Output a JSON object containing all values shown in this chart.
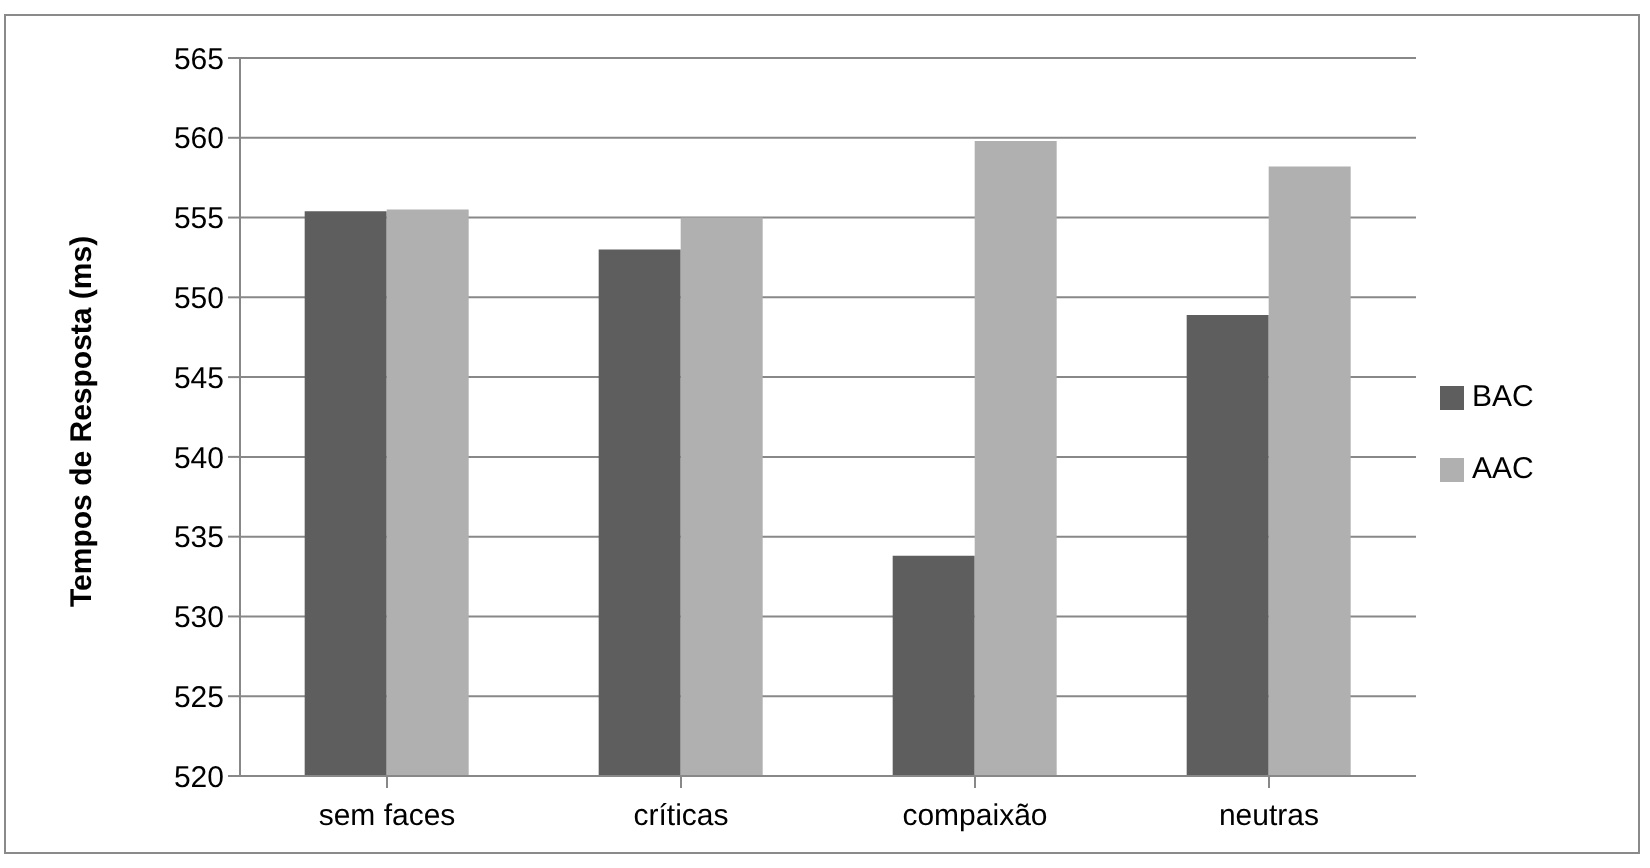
{
  "chart_data": {
    "type": "bar",
    "ylabel": "Tempos de Resposta (ms)",
    "categories": [
      "sem faces",
      "críticas",
      "compaixão",
      "neutras"
    ],
    "series": [
      {
        "name": "BAC",
        "color": "#5e5e5e",
        "values": [
          555.4,
          553.0,
          533.8,
          548.9
        ]
      },
      {
        "name": "AAC",
        "color": "#b0b0b0",
        "values": [
          555.5,
          555.0,
          559.8,
          558.2
        ]
      }
    ],
    "ylim": [
      520,
      565
    ],
    "yticks": [
      520,
      525,
      530,
      535,
      540,
      545,
      550,
      555,
      560,
      565
    ],
    "grid": "y",
    "legend": "right"
  }
}
